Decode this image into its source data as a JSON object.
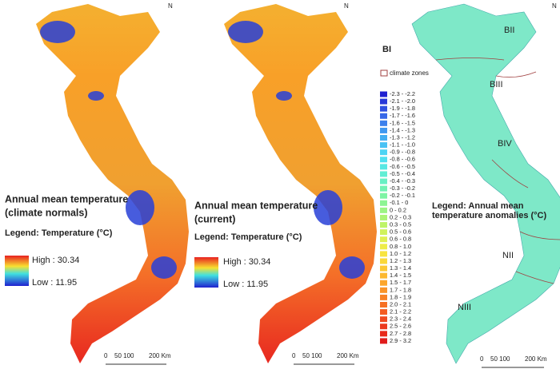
{
  "panels": [
    {
      "title_lines": [
        "Annual mean temperature",
        "(climate normals)"
      ],
      "legend": "Legend: Temperature (°C)",
      "high": "High : 30.34",
      "low": "Low : 11.95",
      "scale": [
        "0",
        "50 100",
        "200 Km"
      ],
      "north": "N"
    },
    {
      "title_lines": [
        "Annual mean temperature",
        "(current)"
      ],
      "legend": "Legend: Temperature (°C)",
      "high": "High : 30.34",
      "low": "Low : 11.95",
      "scale": [
        "0",
        "50 100",
        "200 Km"
      ],
      "north": "N"
    },
    {
      "legend_lines": [
        "Legend: Annual mean",
        "temperature anomalies (°C)"
      ],
      "zones_label": "climate zones",
      "scale": [
        "0",
        "50 100",
        "200 Km"
      ],
      "north": "N",
      "zones": [
        "BI",
        "BII",
        "BIII",
        "BIV",
        "NII",
        "NIII"
      ],
      "classes": [
        {
          "label": "-2.3 - -2.2",
          "color": "#2020d0"
        },
        {
          "label": "-2.1 - -2.0",
          "color": "#2838d8"
        },
        {
          "label": "-1.9 - -1.8",
          "color": "#3050e0"
        },
        {
          "label": "-1.7 - -1.6",
          "color": "#3868e8"
        },
        {
          "label": "-1.6 - -1.5",
          "color": "#3c80ec"
        },
        {
          "label": "-1.4 - -1.3",
          "color": "#4098f0"
        },
        {
          "label": "-1.3 - -1.2",
          "color": "#44aef2"
        },
        {
          "label": "-1.1 - -1.0",
          "color": "#48c2f4"
        },
        {
          "label": "-0.9 - -0.8",
          "color": "#4cd4f4"
        },
        {
          "label": "-0.8 - -0.6",
          "color": "#50e0f0"
        },
        {
          "label": "-0.6 - -0.5",
          "color": "#58e8e4"
        },
        {
          "label": "-0.5 - -0.4",
          "color": "#60eed4"
        },
        {
          "label": "-0.4 - -0.3",
          "color": "#68f0c4"
        },
        {
          "label": "-0.3 - -0.2",
          "color": "#72f2b4"
        },
        {
          "label": "-0.2 - -0.1",
          "color": "#7ef4a4"
        },
        {
          "label": "-0.1 - 0",
          "color": "#8cf494"
        },
        {
          "label": "0 - 0.2",
          "color": "#9cf484"
        },
        {
          "label": "0.2 - 0.3",
          "color": "#acf476"
        },
        {
          "label": "0.3 - 0.5",
          "color": "#bef468"
        },
        {
          "label": "0.5 - 0.6",
          "color": "#d0f25c"
        },
        {
          "label": "0.6 - 0.8",
          "color": "#e0f052"
        },
        {
          "label": "0.8 - 1.0",
          "color": "#eeec48"
        },
        {
          "label": "1.0 - 1.2",
          "color": "#f8e440"
        },
        {
          "label": "1.2 - 1.3",
          "color": "#fad83a"
        },
        {
          "label": "1.3 - 1.4",
          "color": "#fcc834"
        },
        {
          "label": "1.4 - 1.5",
          "color": "#fcb830"
        },
        {
          "label": "1.5 - 1.7",
          "color": "#fca62c"
        },
        {
          "label": "1.7 - 1.8",
          "color": "#fa9428"
        },
        {
          "label": "1.8 - 1.9",
          "color": "#f88226"
        },
        {
          "label": "2.0 - 2.1",
          "color": "#f67024"
        },
        {
          "label": "2.1 - 2.2",
          "color": "#f45c22"
        },
        {
          "label": "2.3 - 2.4",
          "color": "#f04a20"
        },
        {
          "label": "2.5 - 2.6",
          "color": "#ec3a1e"
        },
        {
          "label": "2.7 - 2.8",
          "color": "#e82a1c"
        },
        {
          "label": "2.9 - 3.2",
          "color": "#e01c1c"
        }
      ]
    }
  ]
}
